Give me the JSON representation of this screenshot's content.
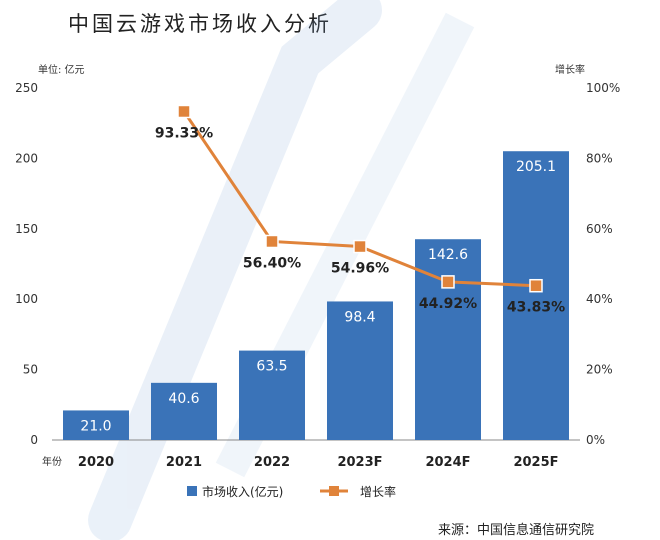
{
  "title": "中国云游戏市场收入分析",
  "source": "来源：中国信息通信研究院",
  "chart_data": {
    "type": "bar",
    "categories": [
      "2020",
      "2021",
      "2022",
      "2023F",
      "2024F",
      "2025F"
    ],
    "x_axis_name": "年份",
    "y_left": {
      "label": "单位: 亿元",
      "range": [
        0,
        250
      ],
      "ticks": [
        0,
        50,
        100,
        150,
        200,
        250
      ]
    },
    "y_right": {
      "label": "增长率",
      "range": [
        0,
        100
      ],
      "ticks": [
        "0%",
        "20%",
        "40%",
        "60%",
        "80%",
        "100%"
      ]
    },
    "series": [
      {
        "name": "市场收入(亿元)",
        "type": "bar",
        "color": "#3a73b8",
        "values": [
          21.0,
          40.6,
          63.5,
          98.4,
          142.6,
          205.1
        ],
        "labels": [
          "21.0",
          "40.6",
          "63.5",
          "98.4",
          "142.6",
          "205.1"
        ]
      },
      {
        "name": "增长率",
        "type": "line",
        "color": "#e0833a",
        "values": [
          null,
          93.33,
          56.4,
          54.96,
          44.92,
          43.83
        ],
        "labels": [
          "",
          "93.33%",
          "56.40%",
          "54.96%",
          "44.92%",
          "43.83%"
        ]
      }
    ],
    "grid": false,
    "legend": "bottom"
  }
}
